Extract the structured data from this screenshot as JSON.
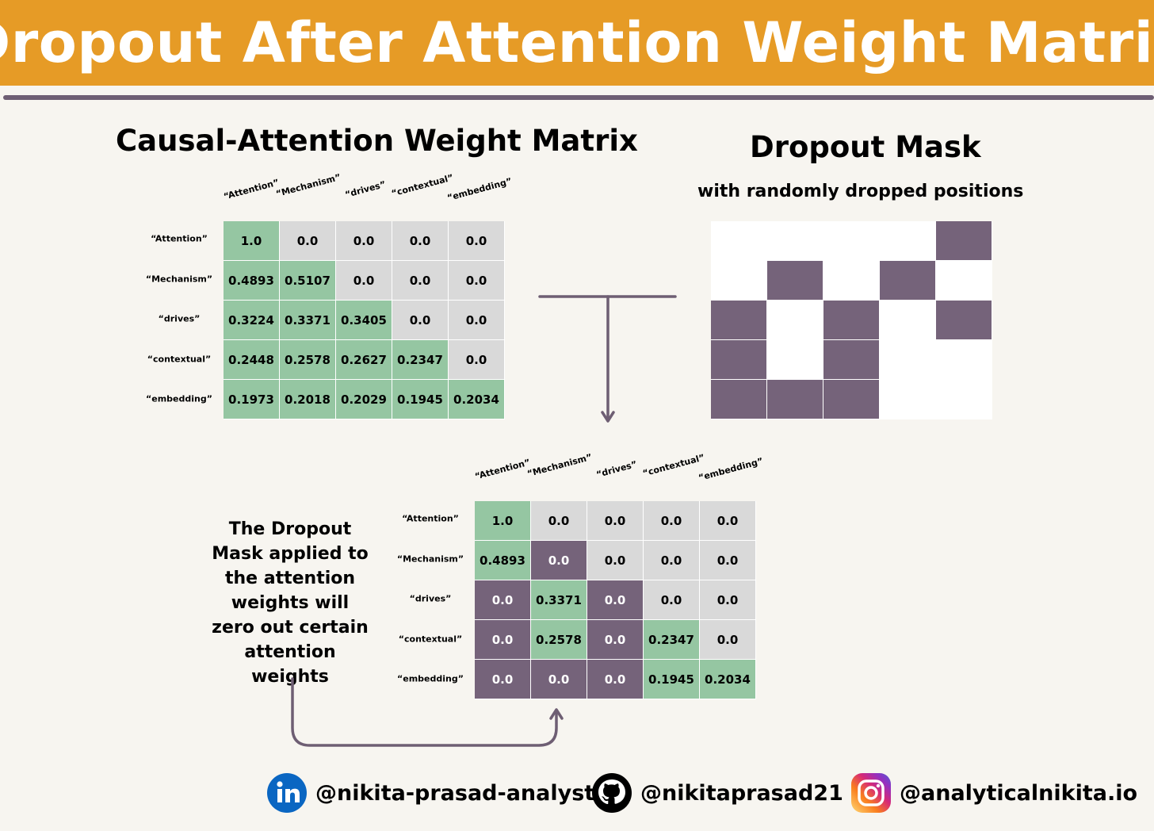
{
  "header": {
    "title": "Dropout After Attention Weight Matrix"
  },
  "left_matrix": {
    "title": "Causal-Attention Weight Matrix",
    "tokens": [
      "“Attention”",
      "“Mechanism”",
      "“drives”",
      "“contextual”",
      "“embedding”"
    ],
    "values": [
      [
        "1.0",
        "0.0",
        "0.0",
        "0.0",
        "0.0"
      ],
      [
        "0.4893",
        "0.5107",
        "0.0",
        "0.0",
        "0.0"
      ],
      [
        "0.3224",
        "0.3371",
        "0.3405",
        "0.0",
        "0.0"
      ],
      [
        "0.2448",
        "0.2578",
        "0.2627",
        "0.2347",
        "0.0"
      ],
      [
        "0.1973",
        "0.2018",
        "0.2029",
        "0.1945",
        "0.2034"
      ]
    ],
    "colors": [
      [
        "g",
        "x",
        "x",
        "x",
        "x"
      ],
      [
        "g",
        "g",
        "x",
        "x",
        "x"
      ],
      [
        "g",
        "g",
        "g",
        "x",
        "x"
      ],
      [
        "g",
        "g",
        "g",
        "g",
        "x"
      ],
      [
        "g",
        "g",
        "g",
        "g",
        "g"
      ]
    ]
  },
  "mask": {
    "title": "Dropout Mask",
    "subtitle": "with randomly dropped positions",
    "dropped": [
      [
        0,
        0,
        0,
        0,
        1
      ],
      [
        0,
        1,
        0,
        1,
        0
      ],
      [
        1,
        0,
        1,
        0,
        1
      ],
      [
        1,
        0,
        1,
        0,
        0
      ],
      [
        1,
        1,
        1,
        0,
        0
      ]
    ]
  },
  "result_matrix": {
    "tokens": [
      "“Attention”",
      "“Mechanism”",
      "“drives”",
      "“contextual”",
      "“embedding”"
    ],
    "values": [
      [
        "1.0",
        "0.0",
        "0.0",
        "0.0",
        "0.0"
      ],
      [
        "0.4893",
        "0.0",
        "0.0",
        "0.0",
        "0.0"
      ],
      [
        "0.0",
        "0.3371",
        "0.0",
        "0.0",
        "0.0"
      ],
      [
        "0.0",
        "0.2578",
        "0.0",
        "0.2347",
        "0.0"
      ],
      [
        "0.0",
        "0.0",
        "0.0",
        "0.1945",
        "0.2034"
      ]
    ],
    "colors": [
      [
        "g",
        "x",
        "x",
        "x",
        "x"
      ],
      [
        "g",
        "p",
        "x",
        "x",
        "x"
      ],
      [
        "p",
        "g",
        "p",
        "x",
        "x"
      ],
      [
        "p",
        "g",
        "p",
        "g",
        "x"
      ],
      [
        "p",
        "p",
        "p",
        "g",
        "g"
      ]
    ]
  },
  "note": {
    "text": "The Dropout Mask applied to the attention weights will zero out certain attention weights"
  },
  "colors": {
    "green": "#95c6a2",
    "gray": "#d9d9d9",
    "purple": "#75637a",
    "accent": "#e69b26"
  },
  "social": [
    {
      "icon": "linkedin-icon",
      "handle": "@nikita-prasad-analyst"
    },
    {
      "icon": "github-icon",
      "handle": "@nikitaprasad21"
    },
    {
      "icon": "instagram-icon",
      "handle": "@analyticalnikita.io"
    }
  ]
}
